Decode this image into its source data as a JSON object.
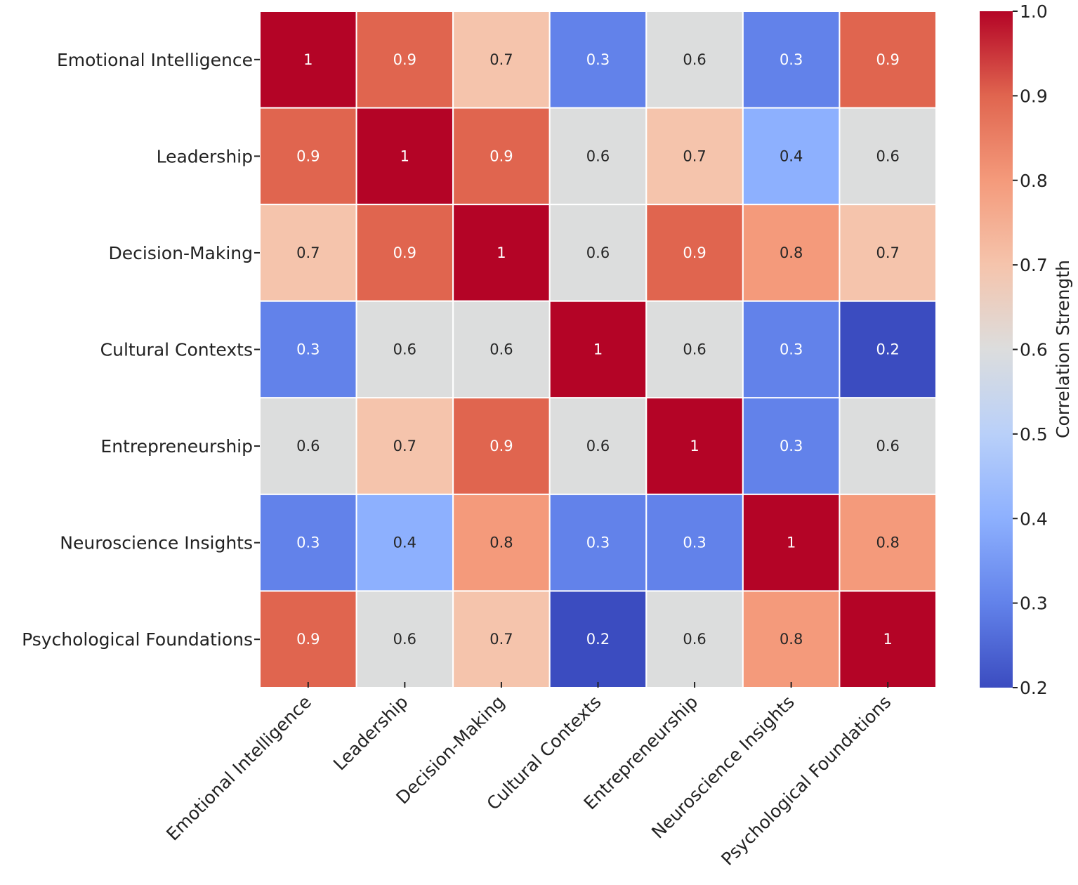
{
  "chart_data": {
    "type": "heatmap",
    "title": "",
    "xlabel": "",
    "ylabel": "",
    "categories": [
      "Emotional Intelligence",
      "Leadership",
      "Decision-Making",
      "Cultural Contexts",
      "Entrepreneurship",
      "Neuroscience Insights",
      "Psychological Foundations"
    ],
    "matrix": [
      [
        1,
        0.9,
        0.7,
        0.3,
        0.6,
        0.3,
        0.9
      ],
      [
        0.9,
        1,
        0.9,
        0.6,
        0.7,
        0.4,
        0.6
      ],
      [
        0.7,
        0.9,
        1,
        0.6,
        0.9,
        0.8,
        0.7
      ],
      [
        0.3,
        0.6,
        0.6,
        1,
        0.6,
        0.3,
        0.2
      ],
      [
        0.6,
        0.7,
        0.9,
        0.6,
        1,
        0.3,
        0.6
      ],
      [
        0.3,
        0.4,
        0.8,
        0.3,
        0.3,
        1,
        0.8
      ],
      [
        0.9,
        0.6,
        0.7,
        0.2,
        0.6,
        0.8,
        1
      ]
    ],
    "colormap": "coolwarm",
    "vmin": 0.2,
    "vmax": 1.0,
    "colorbar": {
      "label": "Correlation Strength",
      "ticks": [
        "0.2",
        "0.3",
        "0.4",
        "0.5",
        "0.6",
        "0.7",
        "0.8",
        "0.9",
        "1.0"
      ]
    },
    "color_stops": [
      "#3b4cc0",
      "#6282ea",
      "#8db0fe",
      "#b9d0f9",
      "#dcdddd",
      "#f5c4ac",
      "#f49a7b",
      "#e0654f",
      "#b40426"
    ]
  }
}
